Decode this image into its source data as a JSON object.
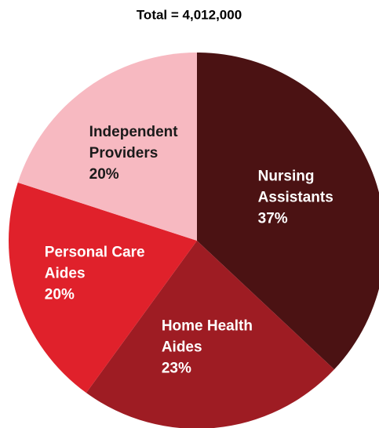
{
  "chart_data": {
    "type": "pie",
    "title": "Total = 4,012,000",
    "categories": [
      "Nursing Assistants",
      "Home Health Aides",
      "Personal Care Aides",
      "Independent Providers"
    ],
    "values": [
      37,
      23,
      20,
      20
    ],
    "value_labels": [
      "37%",
      "23%",
      "20%",
      "20%"
    ],
    "colors": [
      "#4b1213",
      "#9e1c23",
      "#e0212b",
      "#f7b9c1"
    ]
  }
}
